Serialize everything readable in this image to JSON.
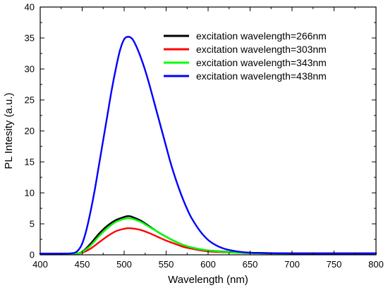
{
  "chart_data": {
    "type": "line",
    "xlabel": "Wavelength (nm)",
    "ylabel": "PL Intesity (a.u.)",
    "xlim": [
      400,
      800
    ],
    "ylim": [
      0,
      40
    ],
    "x_ticks": [
      400,
      450,
      500,
      550,
      600,
      650,
      700,
      750,
      800
    ],
    "y_ticks": [
      0,
      5,
      10,
      15,
      20,
      25,
      30,
      35,
      40
    ],
    "grid": false,
    "legend_position": "top-right",
    "series": [
      {
        "name": "excitation wavelength=266nm",
        "color": "#000000",
        "x": [
          400,
          440,
          450,
          460,
          470,
          480,
          490,
          500,
          505,
          510,
          520,
          530,
          540,
          550,
          560,
          570,
          580,
          590,
          600,
          620,
          640,
          660,
          700,
          800
        ],
        "y": [
          0.2,
          0.2,
          0.5,
          1.8,
          3.4,
          4.7,
          5.6,
          6.1,
          6.25,
          6.1,
          5.5,
          4.6,
          3.7,
          2.9,
          2.2,
          1.6,
          1.2,
          0.9,
          0.7,
          0.5,
          0.35,
          0.3,
          0.25,
          0.25
        ]
      },
      {
        "name": "excitation wavelength=303nm",
        "color": "#ff0000",
        "x": [
          400,
          440,
          450,
          460,
          470,
          480,
          490,
          500,
          505,
          510,
          520,
          530,
          540,
          550,
          560,
          570,
          580,
          590,
          600,
          620,
          640,
          660,
          700,
          800
        ],
        "y": [
          0.2,
          0.2,
          0.35,
          1.0,
          2.0,
          3.0,
          3.8,
          4.2,
          4.3,
          4.25,
          4.0,
          3.5,
          2.9,
          2.3,
          1.8,
          1.3,
          1.0,
          0.75,
          0.55,
          0.4,
          0.3,
          0.25,
          0.2,
          0.2
        ]
      },
      {
        "name": "excitation wavelength=343nm",
        "color": "#00ff00",
        "x": [
          400,
          440,
          450,
          460,
          470,
          480,
          490,
          500,
          505,
          510,
          520,
          530,
          540,
          550,
          560,
          570,
          580,
          590,
          600,
          620,
          640,
          660,
          700,
          800
        ],
        "y": [
          0.2,
          0.2,
          0.45,
          1.5,
          3.0,
          4.3,
          5.3,
          5.8,
          5.9,
          5.8,
          5.3,
          4.5,
          3.7,
          2.9,
          2.2,
          1.6,
          1.2,
          0.9,
          0.7,
          0.45,
          0.3,
          0.25,
          0.2,
          0.2
        ]
      },
      {
        "name": "excitation wavelength=438nm",
        "color": "#0000ff",
        "x": [
          400,
          430,
          440,
          445,
          450,
          455,
          460,
          465,
          470,
          475,
          480,
          485,
          490,
          495,
          500,
          505,
          510,
          515,
          520,
          525,
          530,
          535,
          540,
          545,
          550,
          555,
          560,
          565,
          570,
          575,
          580,
          590,
          600,
          610,
          620,
          630,
          640,
          650,
          660,
          680,
          700,
          750,
          800
        ],
        "y": [
          0.2,
          0.2,
          0.3,
          0.7,
          1.8,
          4.0,
          7.0,
          10.5,
          14.5,
          18.5,
          22.5,
          26.5,
          30.0,
          33.0,
          34.8,
          35.2,
          34.8,
          33.5,
          31.8,
          29.8,
          27.5,
          25.0,
          22.5,
          20.0,
          17.5,
          15.0,
          12.8,
          10.8,
          9.0,
          7.4,
          6.0,
          3.9,
          2.4,
          1.5,
          0.95,
          0.65,
          0.45,
          0.35,
          0.3,
          0.25,
          0.2,
          0.2,
          0.2
        ]
      }
    ]
  }
}
